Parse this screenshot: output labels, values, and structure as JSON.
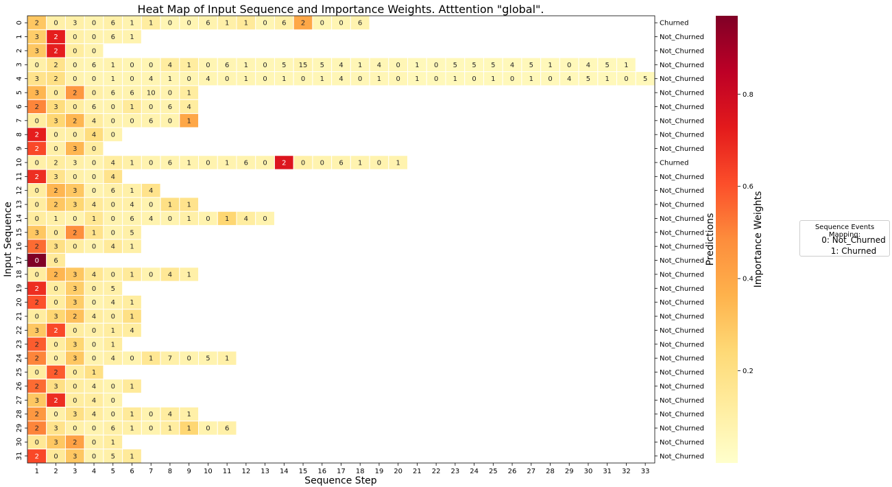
{
  "chart_data": {
    "type": "heatmap",
    "title": "Heat Map of Input Sequence and Importance Weights. Atttention \"global\".",
    "xlabel": "Sequence Step",
    "ylabel": "Input Sequence",
    "right_label": "Predictions",
    "colorbar_label": "Importance Weights",
    "colorbar_ticks": [
      0.2,
      0.4,
      0.6,
      0.8
    ],
    "colorbar_range": [
      0.0,
      0.97
    ],
    "x_ticks": [
      "1",
      "2",
      "3",
      "4",
      "5",
      "6",
      "7",
      "8",
      "9",
      "10",
      "11",
      "12",
      "13",
      "14",
      "15",
      "16",
      "17",
      "18",
      "19",
      "20",
      "21",
      "22",
      "23",
      "24",
      "25",
      "26",
      "27",
      "28",
      "29",
      "30",
      "31",
      "32",
      "33"
    ],
    "y_ticks": [
      "0",
      "1",
      "2",
      "3",
      "4",
      "5",
      "6",
      "7",
      "8",
      "9",
      "10",
      "11",
      "12",
      "13",
      "14",
      "15",
      "16",
      "17",
      "18",
      "19",
      "20",
      "21",
      "22",
      "23",
      "24",
      "25",
      "26",
      "27",
      "28",
      "29",
      "30",
      "31"
    ],
    "predictions": [
      "Churned",
      "Not_Churned",
      "Not_Churned",
      "Not_Churned",
      "Not_Churned",
      "Not_Churned",
      "Not_Churned",
      "Not_Churned",
      "Not_Churned",
      "Not_Churned",
      "Churned",
      "Not_Churned",
      "Not_Churned",
      "Not_Churned",
      "Not_Churned",
      "Not_Churned",
      "Not_Churned",
      "Not_Churned",
      "Not_Churned",
      "Not_Churned",
      "Not_Churned",
      "Not_Churned",
      "Not_Churned",
      "Not_Churned",
      "Not_Churned",
      "Not_Churned",
      "Not_Churned",
      "Not_Churned",
      "Not_Churned",
      "Not_Churned",
      "Not_Churned",
      "Not_Churned"
    ],
    "sequences": [
      [
        2,
        0,
        3,
        0,
        6,
        1,
        1,
        0,
        0,
        6,
        1,
        1,
        0,
        6,
        2,
        0,
        0,
        6
      ],
      [
        3,
        2,
        0,
        0,
        6,
        1
      ],
      [
        3,
        2,
        0,
        0
      ],
      [
        0,
        2,
        0,
        6,
        1,
        0,
        0,
        4,
        1,
        0,
        6,
        1,
        0,
        5,
        15,
        5,
        4,
        1,
        4,
        0,
        1,
        0,
        5,
        5,
        5,
        4,
        5,
        1,
        0,
        4,
        5,
        1
      ],
      [
        3,
        2,
        0,
        0,
        1,
        0,
        4,
        1,
        0,
        4,
        0,
        1,
        0,
        1,
        0,
        1,
        4,
        0,
        1,
        0,
        1,
        0,
        1,
        0,
        1,
        0,
        1,
        0,
        4,
        5,
        1,
        0,
        5
      ],
      [
        3,
        0,
        2,
        0,
        6,
        6,
        10,
        0,
        1
      ],
      [
        2,
        3,
        0,
        6,
        0,
        1,
        0,
        6,
        4
      ],
      [
        0,
        3,
        2,
        4,
        0,
        0,
        6,
        0,
        1
      ],
      [
        2,
        0,
        0,
        4,
        0
      ],
      [
        2,
        0,
        3,
        0
      ],
      [
        0,
        2,
        3,
        0,
        4,
        1,
        0,
        6,
        1,
        0,
        1,
        6,
        0,
        2,
        0,
        0,
        6,
        1,
        0,
        1
      ],
      [
        2,
        3,
        0,
        0,
        4
      ],
      [
        0,
        2,
        3,
        0,
        6,
        1,
        4
      ],
      [
        0,
        2,
        3,
        4,
        0,
        4,
        0,
        1,
        1
      ],
      [
        0,
        1,
        0,
        1,
        0,
        6,
        4,
        0,
        1,
        0,
        1,
        4,
        0
      ],
      [
        3,
        0,
        2,
        1,
        0,
        5
      ],
      [
        2,
        3,
        0,
        0,
        4,
        1
      ],
      [
        0,
        6
      ],
      [
        0,
        2,
        3,
        4,
        0,
        1,
        0,
        4,
        1
      ],
      [
        2,
        0,
        3,
        0,
        5
      ],
      [
        2,
        0,
        3,
        0,
        4,
        1
      ],
      [
        0,
        3,
        2,
        4,
        0,
        1
      ],
      [
        3,
        2,
        0,
        0,
        1,
        4
      ],
      [
        2,
        0,
        3,
        0,
        1
      ],
      [
        2,
        0,
        3,
        0,
        4,
        0,
        1,
        7,
        0,
        5,
        1
      ],
      [
        0,
        2,
        0,
        1
      ],
      [
        2,
        3,
        0,
        4,
        0,
        1
      ],
      [
        3,
        2,
        0,
        4,
        0
      ],
      [
        2,
        0,
        3,
        4,
        0,
        1,
        0,
        4,
        1
      ],
      [
        2,
        3,
        0,
        0,
        6,
        1,
        0,
        1,
        1,
        0,
        6
      ],
      [
        0,
        3,
        2,
        0,
        1
      ],
      [
        2,
        0,
        3,
        0,
        5,
        1
      ]
    ],
    "weights": [
      [
        0.3,
        0.1,
        0.1,
        0.08,
        0.1,
        0.08,
        0.12,
        0.07,
        0.07,
        0.08,
        0.1,
        0.14,
        0.07,
        0.1,
        0.4,
        0.07,
        0.07,
        0.08
      ],
      [
        0.28,
        0.72,
        0.1,
        0.08,
        0.08,
        0.08
      ],
      [
        0.3,
        0.72,
        0.12,
        0.08
      ],
      [
        0.1,
        0.18,
        0.08,
        0.07,
        0.08,
        0.07,
        0.07,
        0.12,
        0.12,
        0.07,
        0.07,
        0.07,
        0.06,
        0.06,
        0.08,
        0.06,
        0.06,
        0.06,
        0.06,
        0.06,
        0.05,
        0.05,
        0.05,
        0.05,
        0.05,
        0.05,
        0.05,
        0.05,
        0.05,
        0.05,
        0.05,
        0.05
      ],
      [
        0.18,
        0.2,
        0.08,
        0.07,
        0.07,
        0.07,
        0.07,
        0.07,
        0.07,
        0.07,
        0.07,
        0.07,
        0.06,
        0.06,
        0.06,
        0.06,
        0.06,
        0.06,
        0.06,
        0.06,
        0.05,
        0.05,
        0.05,
        0.05,
        0.05,
        0.05,
        0.05,
        0.05,
        0.05,
        0.05,
        0.05,
        0.05,
        0.05
      ],
      [
        0.35,
        0.12,
        0.45,
        0.1,
        0.08,
        0.08,
        0.08,
        0.08,
        0.12
      ],
      [
        0.5,
        0.22,
        0.12,
        0.08,
        0.08,
        0.14,
        0.08,
        0.08,
        0.12
      ],
      [
        0.12,
        0.25,
        0.35,
        0.12,
        0.08,
        0.08,
        0.08,
        0.08,
        0.4
      ],
      [
        0.72,
        0.1,
        0.1,
        0.22,
        0.08
      ],
      [
        0.62,
        0.1,
        0.35,
        0.12
      ],
      [
        0.1,
        0.12,
        0.1,
        0.08,
        0.12,
        0.1,
        0.08,
        0.08,
        0.08,
        0.08,
        0.08,
        0.08,
        0.08,
        0.75,
        0.1,
        0.08,
        0.08,
        0.08,
        0.08,
        0.08
      ],
      [
        0.68,
        0.18,
        0.1,
        0.08,
        0.18
      ],
      [
        0.12,
        0.35,
        0.3,
        0.08,
        0.1,
        0.1,
        0.18
      ],
      [
        0.12,
        0.3,
        0.25,
        0.14,
        0.1,
        0.1,
        0.08,
        0.2,
        0.18
      ],
      [
        0.12,
        0.1,
        0.08,
        0.16,
        0.08,
        0.08,
        0.08,
        0.08,
        0.1,
        0.08,
        0.25,
        0.12,
        0.08
      ],
      [
        0.3,
        0.12,
        0.48,
        0.18,
        0.08,
        0.1
      ],
      [
        0.55,
        0.2,
        0.12,
        0.08,
        0.14,
        0.1
      ],
      [
        0.97,
        0.14
      ],
      [
        0.12,
        0.35,
        0.3,
        0.16,
        0.1,
        0.14,
        0.08,
        0.15,
        0.1
      ],
      [
        0.68,
        0.12,
        0.28,
        0.1,
        0.1
      ],
      [
        0.6,
        0.12,
        0.28,
        0.08,
        0.1,
        0.12
      ],
      [
        0.12,
        0.25,
        0.32,
        0.12,
        0.1,
        0.2
      ],
      [
        0.3,
        0.62,
        0.12,
        0.1,
        0.12,
        0.12
      ],
      [
        0.58,
        0.12,
        0.25,
        0.08,
        0.12
      ],
      [
        0.5,
        0.1,
        0.3,
        0.08,
        0.1,
        0.08,
        0.16,
        0.1,
        0.08,
        0.08,
        0.1
      ],
      [
        0.12,
        0.58,
        0.12,
        0.2
      ],
      [
        0.55,
        0.2,
        0.12,
        0.1,
        0.08,
        0.14
      ],
      [
        0.3,
        0.68,
        0.12,
        0.12,
        0.08
      ],
      [
        0.45,
        0.1,
        0.2,
        0.12,
        0.08,
        0.14,
        0.08,
        0.12,
        0.1
      ],
      [
        0.5,
        0.18,
        0.1,
        0.08,
        0.1,
        0.1,
        0.08,
        0.12,
        0.25,
        0.08,
        0.1
      ],
      [
        0.15,
        0.3,
        0.42,
        0.1,
        0.12
      ],
      [
        0.62,
        0.14,
        0.3,
        0.08,
        0.1,
        0.14
      ]
    ]
  },
  "legend": {
    "title": "Sequence Events Mapping:",
    "entries": [
      "0: Not_Churned",
      "1: Churned"
    ]
  }
}
